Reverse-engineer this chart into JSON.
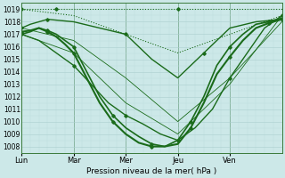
{
  "xlabel": "Pression niveau de la mer( hPa )",
  "ylim": [
    1007.5,
    1019.5
  ],
  "yticks": [
    1008,
    1009,
    1010,
    1011,
    1012,
    1013,
    1014,
    1015,
    1016,
    1017,
    1018,
    1019
  ],
  "day_labels": [
    "Lun",
    "Mar",
    "Mer",
    "Jeu",
    "Ven"
  ],
  "day_positions": [
    0,
    24,
    48,
    72,
    96
  ],
  "bg_color": "#cce8e8",
  "grid_major_color": "#aacece",
  "grid_minor_color": "#bbdddd",
  "line_color": "#1a6b1a",
  "total_hours": 120,
  "series": [
    {
      "name": "s1_dotted_top",
      "x": [
        0,
        4,
        8,
        16,
        24,
        48,
        72,
        96,
        120
      ],
      "y": [
        1019.0,
        1019.0,
        1019.0,
        1019.0,
        1019.0,
        1019.0,
        1019.0,
        1019.0,
        1019.0
      ],
      "style": "dotted",
      "lw": 0.8,
      "marker": true
    },
    {
      "name": "s2_dotted_diag",
      "x": [
        0,
        24,
        48,
        72,
        96,
        120
      ],
      "y": [
        1019.0,
        1018.5,
        1017.0,
        1015.5,
        1017.0,
        1018.5
      ],
      "style": "dotted",
      "lw": 0.8,
      "marker": false
    },
    {
      "name": "s3_solid_upper",
      "x": [
        0,
        4,
        8,
        12,
        24,
        36,
        48,
        60,
        72,
        84,
        96,
        108,
        120
      ],
      "y": [
        1017.5,
        1017.8,
        1018.0,
        1018.2,
        1018.0,
        1017.5,
        1017.0,
        1015.0,
        1013.5,
        1015.5,
        1017.5,
        1018.0,
        1018.2
      ],
      "style": "solid",
      "lw": 1.0,
      "marker": true
    },
    {
      "name": "s4_solid_main",
      "x": [
        0,
        4,
        8,
        12,
        16,
        20,
        24,
        30,
        36,
        42,
        48,
        54,
        60,
        66,
        72,
        78,
        84,
        90,
        96,
        102,
        108,
        114,
        120
      ],
      "y": [
        1017.0,
        1017.2,
        1017.5,
        1017.3,
        1017.0,
        1016.5,
        1016.0,
        1014.0,
        1012.0,
        1010.5,
        1009.5,
        1008.8,
        1008.2,
        1008.0,
        1008.5,
        1010.0,
        1012.0,
        1014.5,
        1016.0,
        1017.0,
        1017.8,
        1018.0,
        1018.3
      ],
      "style": "solid",
      "lw": 1.2,
      "marker": true
    },
    {
      "name": "s5_solid_main2",
      "x": [
        0,
        4,
        8,
        12,
        16,
        20,
        24,
        30,
        36,
        42,
        48,
        54,
        60,
        66,
        72,
        78,
        84,
        90,
        96,
        102,
        108,
        114,
        120
      ],
      "y": [
        1017.2,
        1017.3,
        1017.5,
        1017.2,
        1016.8,
        1016.2,
        1015.5,
        1013.5,
        1011.5,
        1010.0,
        1009.0,
        1008.3,
        1008.0,
        1008.0,
        1008.2,
        1009.5,
        1011.5,
        1013.8,
        1015.2,
        1016.5,
        1017.5,
        1017.9,
        1018.2
      ],
      "style": "solid",
      "lw": 1.5,
      "marker": true
    },
    {
      "name": "s6_solid_lower",
      "x": [
        0,
        8,
        16,
        24,
        32,
        40,
        48,
        56,
        64,
        72,
        80,
        88,
        96,
        104,
        112,
        120
      ],
      "y": [
        1017.0,
        1016.5,
        1015.5,
        1014.5,
        1013.0,
        1011.5,
        1010.5,
        1009.8,
        1009.0,
        1008.5,
        1009.5,
        1011.0,
        1013.5,
        1015.5,
        1017.5,
        1018.5
      ],
      "style": "solid",
      "lw": 1.0,
      "marker": true
    },
    {
      "name": "s7_thin_diag",
      "x": [
        0,
        24,
        48,
        72,
        96,
        120
      ],
      "y": [
        1017.5,
        1016.5,
        1013.5,
        1010.0,
        1013.5,
        1018.0
      ],
      "style": "solid",
      "lw": 0.6,
      "marker": false
    },
    {
      "name": "s8_thin_diag2",
      "x": [
        0,
        24,
        48,
        72,
        96,
        120
      ],
      "y": [
        1017.0,
        1015.5,
        1011.5,
        1009.0,
        1013.0,
        1018.5
      ],
      "style": "solid",
      "lw": 0.6,
      "marker": false
    }
  ],
  "marker_size": 1.8,
  "tick_fontsize": 5.5,
  "xlabel_fontsize": 6.5
}
